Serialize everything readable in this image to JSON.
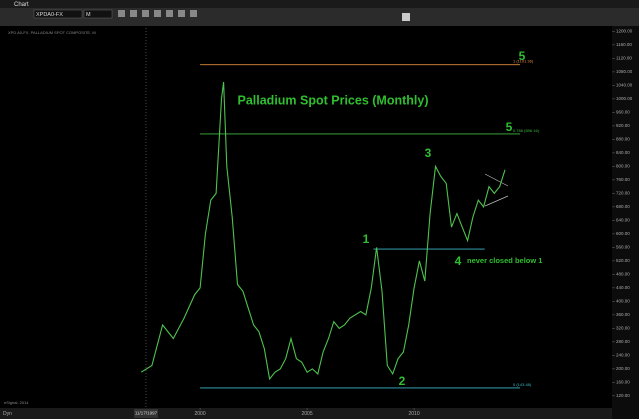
{
  "window": {
    "title": "Chart",
    "symbol": "XPDA0-FX",
    "interval": "M"
  },
  "chart_data": {
    "type": "line",
    "title": "Palladium Spot Prices (Monthly)",
    "subtitle": "XPD A0-FX, PALLADIUM SPOT COMPOSITE, M",
    "watermark": "eSignal, 2014",
    "start_date": "11/17/1997",
    "corner_label": "Dyn",
    "x": [
      1997.25,
      1997.75,
      1998.25,
      1998.75,
      1999.25,
      1999.75,
      2000.0,
      2000.25,
      2000.5,
      2000.75,
      2001.0,
      2001.1,
      2001.25,
      2001.5,
      2001.75,
      2002.0,
      2002.25,
      2002.5,
      2002.75,
      2003.0,
      2003.25,
      2003.5,
      2003.75,
      2004.0,
      2004.25,
      2004.5,
      2004.75,
      2005.0,
      2005.25,
      2005.5,
      2005.75,
      2006.0,
      2006.25,
      2006.5,
      2006.75,
      2007.0,
      2007.5,
      2007.75,
      2008.0,
      2008.25,
      2008.5,
      2008.75,
      2009.0,
      2009.25,
      2009.5,
      2009.75,
      2010.0,
      2010.25,
      2010.5,
      2010.75,
      2011.0,
      2011.25,
      2011.5,
      2011.75,
      2012.0,
      2012.25,
      2012.5,
      2012.75,
      2013.0,
      2013.25,
      2013.5,
      2013.75,
      2014.0,
      2014.25
    ],
    "series": [
      {
        "name": "XPD A0-FX",
        "color": "#4ec24e",
        "values": [
          190,
          210,
          330,
          290,
          350,
          420,
          440,
          600,
          700,
          720,
          1000,
          1050,
          800,
          650,
          450,
          430,
          380,
          330,
          310,
          260,
          170,
          190,
          200,
          230,
          290,
          230,
          220,
          190,
          200,
          185,
          250,
          290,
          340,
          320,
          330,
          350,
          370,
          360,
          440,
          560,
          430,
          210,
          185,
          230,
          250,
          330,
          440,
          520,
          460,
          660,
          800,
          770,
          750,
          620,
          660,
          620,
          580,
          650,
          700,
          680,
          740,
          720,
          740,
          790
        ]
      }
    ],
    "xlim": [
      1990.65,
      2019.25
    ],
    "xticks": [
      2000,
      2005,
      2010
    ],
    "ylim": [
      84,
      1216
    ],
    "yticks": [
      {
        "value": 120,
        "label": "120.00"
      },
      {
        "value": 160,
        "label": "160.00"
      },
      {
        "value": 200,
        "label": "200.00"
      },
      {
        "value": 240,
        "label": "240.00"
      },
      {
        "value": 280,
        "label": "280.00"
      },
      {
        "value": 320,
        "label": "320.00"
      },
      {
        "value": 360,
        "label": "360.00"
      },
      {
        "value": 400,
        "label": "400.00"
      },
      {
        "value": 440,
        "label": "440.00"
      },
      {
        "value": 480,
        "label": "480.00"
      },
      {
        "value": 520,
        "label": "520.00"
      },
      {
        "value": 560,
        "label": "560.00"
      },
      {
        "value": 600,
        "label": "600.00"
      },
      {
        "value": 640,
        "label": "640.00"
      },
      {
        "value": 680,
        "label": "680.00"
      },
      {
        "value": 720,
        "label": "720.00"
      },
      {
        "value": 760,
        "label": "760.00"
      },
      {
        "value": 800,
        "label": "800.00"
      },
      {
        "value": 840,
        "label": "840.00"
      },
      {
        "value": 880,
        "label": "880.00"
      },
      {
        "value": 920,
        "label": "920.00"
      },
      {
        "value": 960,
        "label": "960.00"
      },
      {
        "value": 1000,
        "label": "1000.00"
      },
      {
        "value": 1040,
        "label": "1040.00"
      },
      {
        "value": 1080,
        "label": "1080.00"
      },
      {
        "value": 1120,
        "label": "1120.00"
      },
      {
        "value": 1160,
        "label": "1160.00"
      },
      {
        "value": 1200,
        "label": "1200.00"
      }
    ],
    "levels": [
      {
        "value": 1101.36,
        "label": "1 (1101.36)",
        "color": "#e08a3c"
      },
      {
        "value": 896.16,
        "label": "0.786 (896.16)",
        "color": "#3fb83f"
      },
      {
        "value": 143.48,
        "label": "0 (143.48)",
        "color": "#3ab7c9"
      }
    ],
    "support": {
      "value": 555,
      "x": [
        2008.1,
        2013.3
      ],
      "color": "#3ab7c9"
    },
    "annotations": [
      "5",
      "5",
      "3",
      "1",
      "4",
      "never closed below 1",
      "2"
    ]
  }
}
